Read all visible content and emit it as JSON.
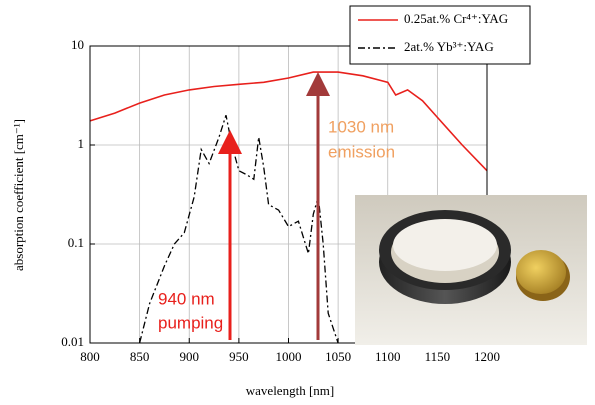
{
  "chart_data": {
    "type": "line",
    "xlabel": "wavelength [nm]",
    "ylabel": "absorption coefficient [cm⁻¹]",
    "xlim": [
      800,
      1200
    ],
    "xticks": [
      800,
      850,
      900,
      950,
      1000,
      1050,
      1100,
      1150,
      1200
    ],
    "ylim": [
      0.01,
      10
    ],
    "yticks": [
      0.01,
      0.1,
      1,
      10
    ],
    "yscale": "log",
    "grid": true,
    "legend": "upper right",
    "series": [
      {
        "name": "0.25at.% Cr⁴⁺:YAG",
        "color": "#e8201c",
        "dash": "solid",
        "x": [
          800,
          825,
          850,
          875,
          900,
          925,
          950,
          975,
          1000,
          1025,
          1050,
          1075,
          1100,
          1108,
          1120,
          1135,
          1150,
          1175,
          1200
        ],
        "values": [
          1.75,
          2.1,
          2.65,
          3.2,
          3.6,
          3.9,
          4.1,
          4.3,
          4.75,
          5.45,
          5.45,
          5.0,
          4.3,
          3.2,
          3.6,
          2.8,
          1.9,
          1.0,
          0.55
        ]
      },
      {
        "name": "2at.% Yb³⁺:YAG",
        "color": "#000000",
        "dash": "dashdot",
        "x": [
          850,
          860,
          875,
          885,
          895,
          905,
          912,
          920,
          930,
          937,
          943,
          950,
          958,
          965,
          970,
          975,
          980,
          990,
          1000,
          1010,
          1020,
          1025,
          1030,
          1035,
          1040,
          1050
        ],
        "values": [
          0.01,
          0.025,
          0.06,
          0.1,
          0.13,
          0.3,
          0.9,
          0.65,
          1.2,
          2.0,
          1.0,
          0.55,
          0.5,
          0.45,
          1.2,
          0.6,
          0.25,
          0.22,
          0.15,
          0.17,
          0.08,
          0.2,
          0.3,
          0.1,
          0.02,
          0.01
        ]
      }
    ],
    "annotations": [
      [
        "940 nm",
        "pumping"
      ],
      [
        "1030 nm",
        "emission"
      ]
    ]
  }
}
